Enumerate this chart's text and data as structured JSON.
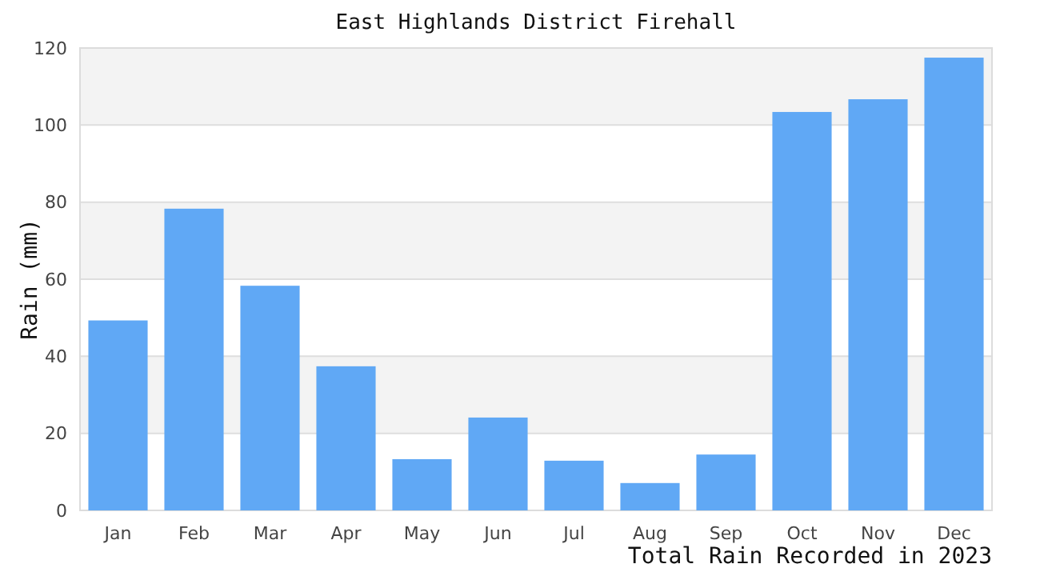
{
  "chart_data": {
    "type": "bar",
    "title": "East Highlands District Firehall",
    "ylabel": "Rain (mm)",
    "annotations": [
      "Total Rain Recorded in 2023"
    ],
    "categories": [
      "Jan",
      "Feb",
      "Mar",
      "Apr",
      "May",
      "Jun",
      "Jul",
      "Aug",
      "Sep",
      "Oct",
      "Nov",
      "Dec"
    ],
    "values": [
      49.3,
      78.3,
      58.3,
      37.4,
      13.3,
      24.1,
      12.9,
      7.1,
      14.5,
      103.4,
      106.7,
      117.5
    ],
    "color": "#60a8f5",
    "ylim": [
      0,
      120
    ],
    "yticks": [
      0,
      20,
      40,
      60,
      80,
      100,
      120
    ],
    "grid": true
  }
}
